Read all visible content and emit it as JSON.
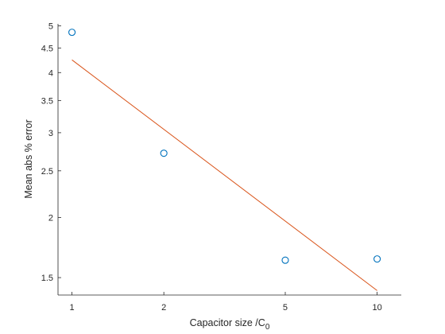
{
  "chart_data": {
    "type": "scatter",
    "title": "",
    "xlabel": "Capacitor size /C",
    "xlabel_subscript": "0",
    "ylabel": "Mean abs % error",
    "x_scale": "log",
    "y_scale": "log",
    "xlim": [
      0.9,
      12
    ],
    "ylim": [
      1.38,
      5.05
    ],
    "grid": false,
    "legend": "none",
    "x_ticks": [
      {
        "value": 1,
        "label": "1"
      },
      {
        "value": 2,
        "label": "2"
      },
      {
        "value": 5,
        "label": "5"
      },
      {
        "value": 10,
        "label": "10"
      }
    ],
    "y_ticks": [
      {
        "value": 1.5,
        "label": "1.5"
      },
      {
        "value": 2,
        "label": "2"
      },
      {
        "value": 2.5,
        "label": "2.5"
      },
      {
        "value": 3,
        "label": "3"
      },
      {
        "value": 3.5,
        "label": "3.5"
      },
      {
        "value": 4,
        "label": "4"
      },
      {
        "value": 4.5,
        "label": "4.5"
      },
      {
        "value": 5,
        "label": "5"
      }
    ],
    "series": [
      {
        "kind": "markers",
        "color": "#0072BD",
        "points": [
          {
            "x": 1,
            "y": 4.85
          },
          {
            "x": 2,
            "y": 2.72
          },
          {
            "x": 5,
            "y": 1.63
          },
          {
            "x": 10,
            "y": 1.64
          }
        ]
      },
      {
        "kind": "line",
        "color": "#D95319",
        "points": [
          {
            "x": 1,
            "y": 4.25
          },
          {
            "x": 10,
            "y": 1.41
          }
        ]
      }
    ]
  }
}
